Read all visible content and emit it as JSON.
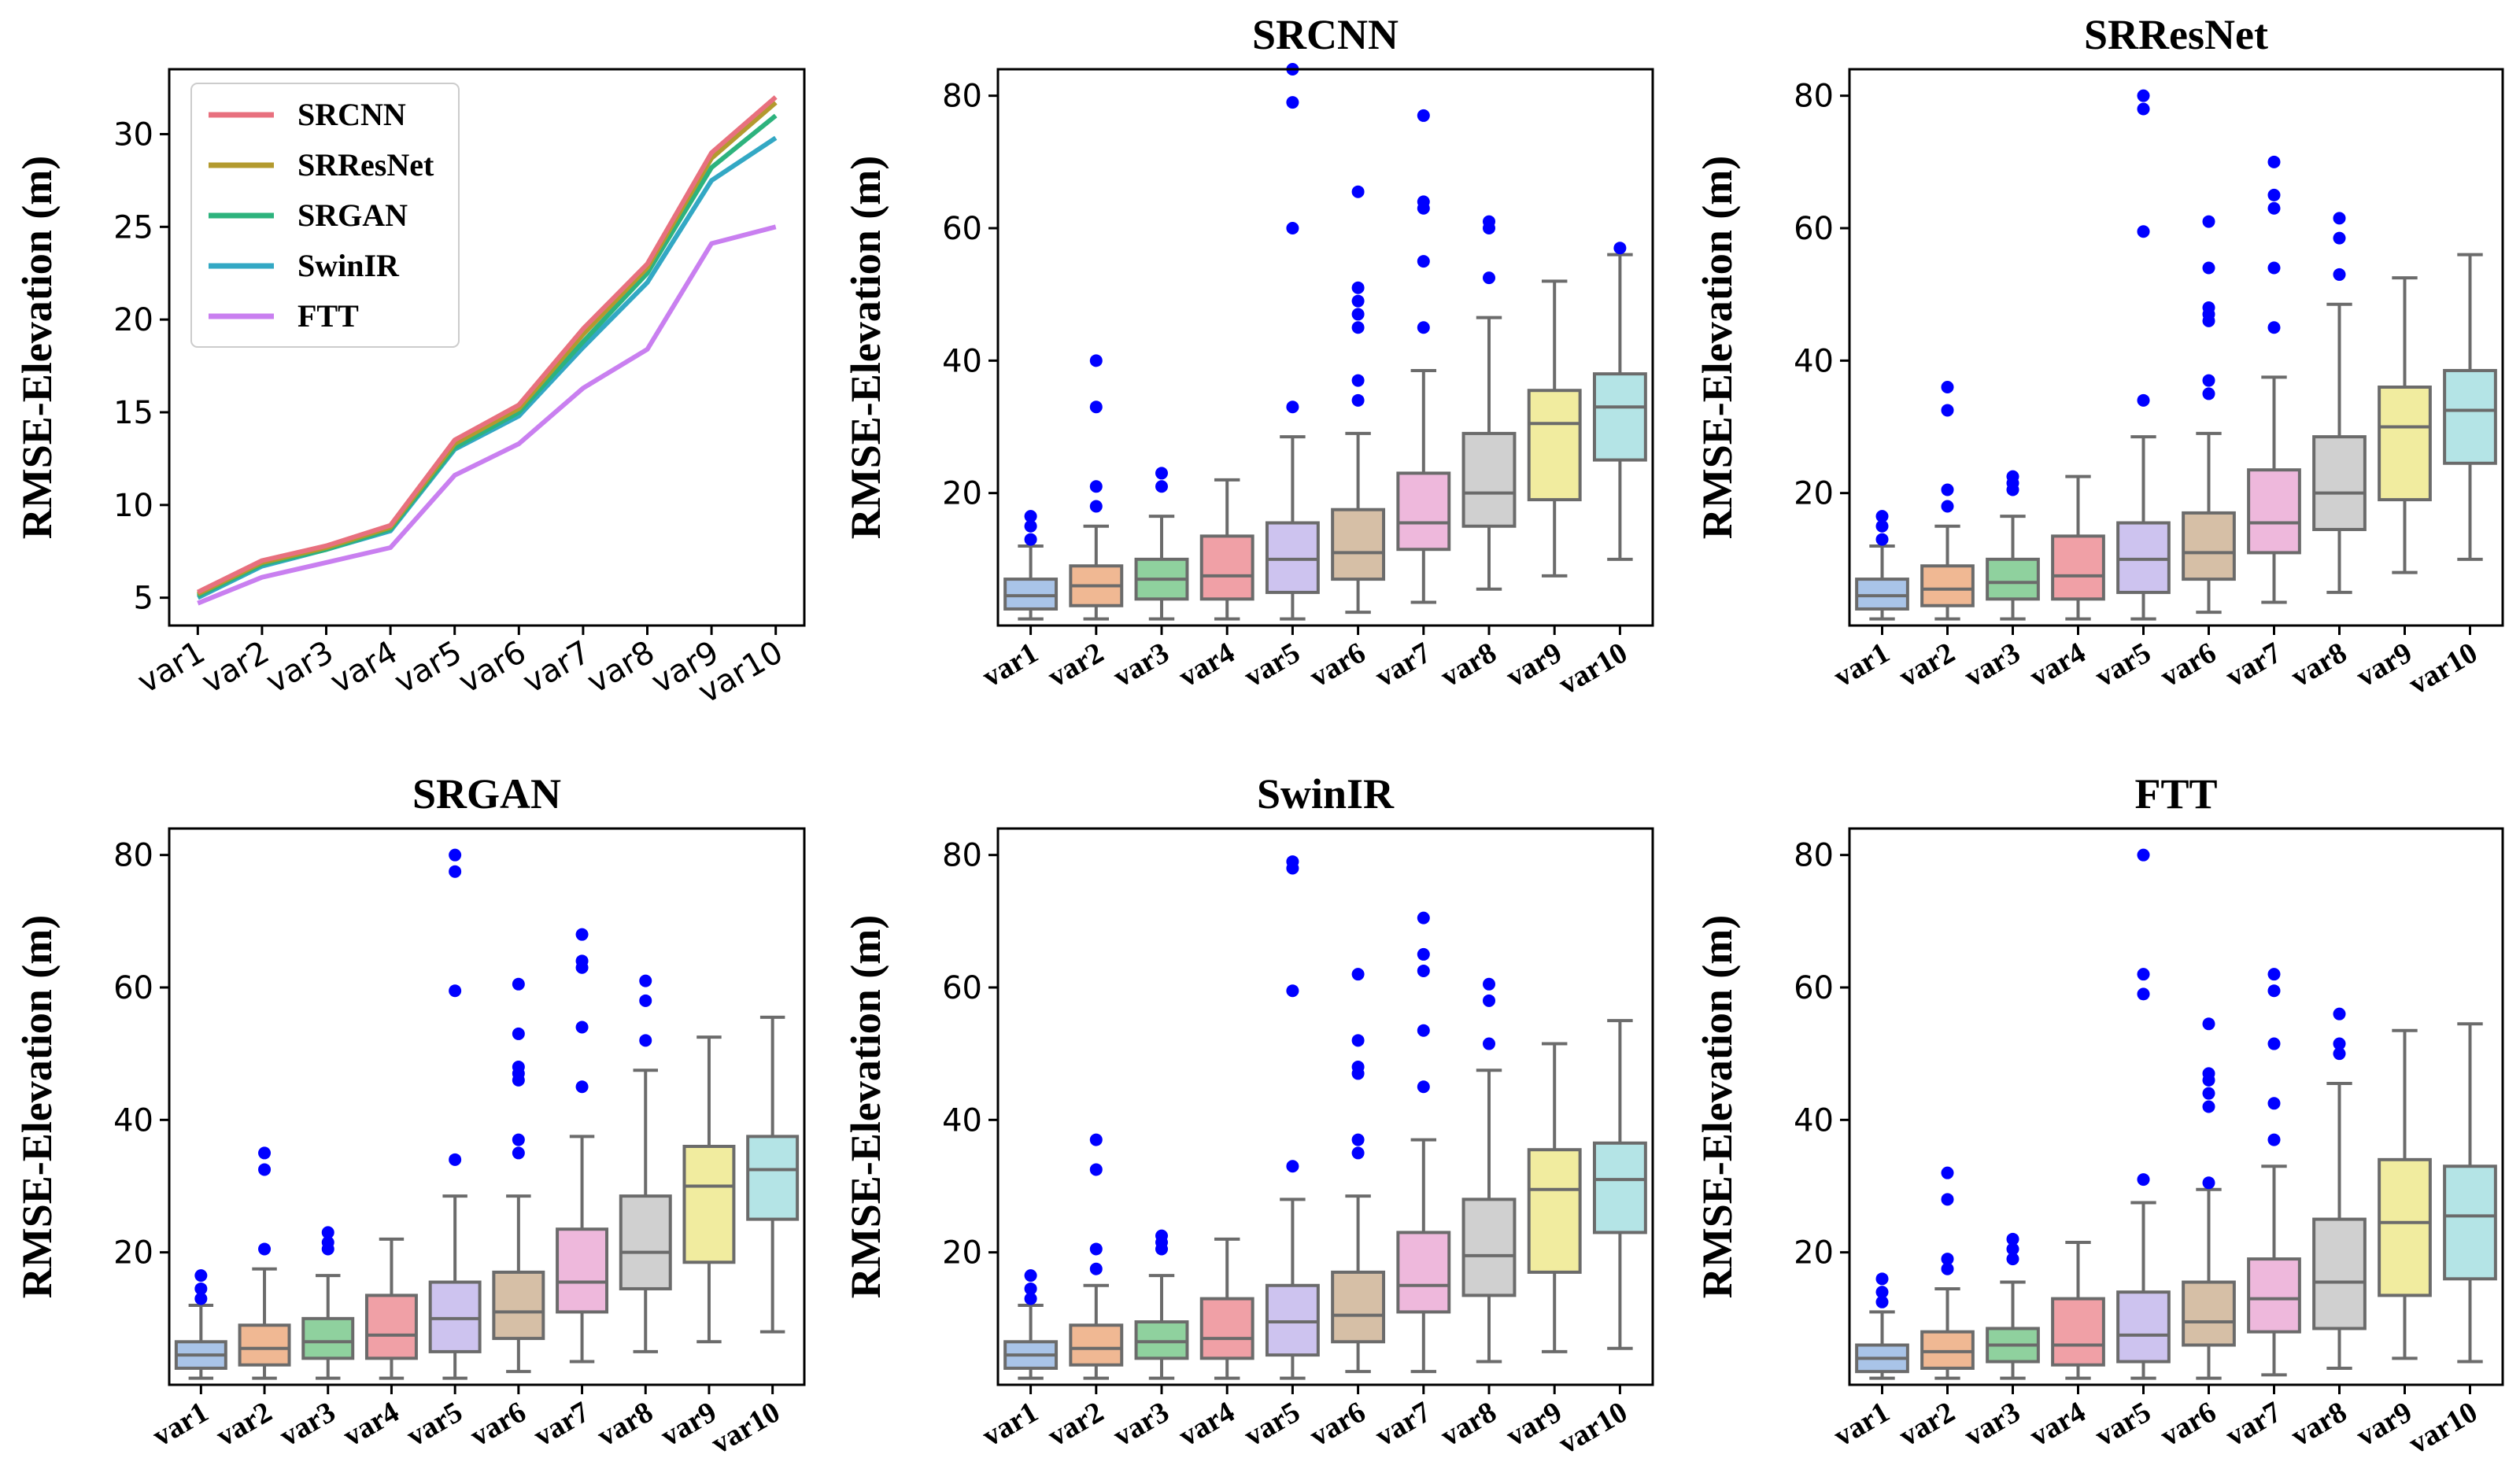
{
  "colors": {
    "axis": "#000000",
    "box_edge": "#6b6b6b",
    "outlier": "#0000ff",
    "series": [
      "#e8707e",
      "#b39a2e",
      "#2db37d",
      "#33a8c4",
      "#c97ff0"
    ],
    "box_fill": [
      "#a9c4e8",
      "#f0b893",
      "#8fd19e",
      "#f0a0a6",
      "#cdc3ef",
      "#d6bfa6",
      "#eeb8dc",
      "#d0d0d0",
      "#f1ec9f",
      "#b4e4e6"
    ]
  },
  "chart_data": [
    {
      "type": "line",
      "title": "",
      "xlabel": "",
      "ylabel": "RMSE-Elevation (m)",
      "ylim": [
        3.5,
        33.5
      ],
      "yticks": [
        5,
        10,
        15,
        20,
        25,
        30
      ],
      "categories": [
        "var1",
        "var2",
        "var3",
        "var4",
        "var5",
        "var6",
        "var7",
        "var8",
        "var9",
        "var10"
      ],
      "legend_position": "top-left",
      "series": [
        {
          "name": "SRCNN",
          "values": [
            5.3,
            7.0,
            7.8,
            8.9,
            13.5,
            15.4,
            19.5,
            23.0,
            29.0,
            32.0
          ]
        },
        {
          "name": "SRResNet",
          "values": [
            5.2,
            6.9,
            7.7,
            8.8,
            13.3,
            15.2,
            19.2,
            22.8,
            28.7,
            31.7
          ]
        },
        {
          "name": "SRGAN",
          "values": [
            5.1,
            6.8,
            7.6,
            8.7,
            13.1,
            15.0,
            18.8,
            22.5,
            28.2,
            31.0
          ]
        },
        {
          "name": "SwinIR",
          "values": [
            5.0,
            6.7,
            7.6,
            8.6,
            13.0,
            14.8,
            18.5,
            22.0,
            27.5,
            29.8
          ]
        },
        {
          "name": "FTT",
          "values": [
            4.7,
            6.1,
            6.9,
            7.7,
            11.6,
            13.3,
            16.3,
            18.4,
            24.1,
            25.0
          ]
        }
      ]
    },
    {
      "type": "box",
      "title": "SRCNN",
      "ylabel": "RMSE-Elevation (m)",
      "ylim": [
        0,
        84
      ],
      "yticks": [
        20,
        40,
        60,
        80
      ],
      "categories": [
        "var1",
        "var2",
        "var3",
        "var4",
        "var5",
        "var6",
        "var7",
        "var8",
        "var9",
        "var10"
      ],
      "boxes": [
        {
          "whislo": 1,
          "q1": 2.5,
          "med": 4.5,
          "q3": 7,
          "whishi": 12,
          "fliers": [
            13,
            15,
            16.5
          ]
        },
        {
          "whislo": 1,
          "q1": 3,
          "med": 6,
          "q3": 9,
          "whishi": 15,
          "fliers": [
            18,
            21,
            33,
            40
          ]
        },
        {
          "whislo": 1,
          "q1": 4,
          "med": 7,
          "q3": 10,
          "whishi": 16.5,
          "fliers": [
            21,
            23
          ]
        },
        {
          "whislo": 1,
          "q1": 4,
          "med": 7.5,
          "q3": 13.5,
          "whishi": 22,
          "fliers": []
        },
        {
          "whislo": 1,
          "q1": 5,
          "med": 10,
          "q3": 15.5,
          "whishi": 28.5,
          "fliers": [
            33,
            60,
            79,
            84
          ]
        },
        {
          "whislo": 2,
          "q1": 7,
          "med": 11,
          "q3": 17.5,
          "whishi": 29,
          "fliers": [
            34,
            37,
            45,
            47,
            49,
            51,
            65.5
          ]
        },
        {
          "whislo": 3.5,
          "q1": 11.5,
          "med": 15.5,
          "q3": 23,
          "whishi": 38.5,
          "fliers": [
            45,
            55,
            63,
            64,
            77
          ]
        },
        {
          "whislo": 5.5,
          "q1": 15,
          "med": 20,
          "q3": 29,
          "whishi": 46.5,
          "fliers": [
            52.5,
            60,
            61
          ]
        },
        {
          "whislo": 7.5,
          "q1": 19,
          "med": 30.5,
          "q3": 35.5,
          "whishi": 52,
          "fliers": []
        },
        {
          "whislo": 10,
          "q1": 25,
          "med": 33,
          "q3": 38,
          "whishi": 56,
          "fliers": [
            57
          ]
        }
      ]
    },
    {
      "type": "box",
      "title": "SRResNet",
      "ylabel": "RMSE-Elevation (m)",
      "ylim": [
        0,
        84
      ],
      "yticks": [
        20,
        40,
        60,
        80
      ],
      "categories": [
        "var1",
        "var2",
        "var3",
        "var4",
        "var5",
        "var6",
        "var7",
        "var8",
        "var9",
        "var10"
      ],
      "boxes": [
        {
          "whislo": 1,
          "q1": 2.5,
          "med": 4.5,
          "q3": 7,
          "whishi": 12,
          "fliers": [
            13,
            15,
            16.5
          ]
        },
        {
          "whislo": 1,
          "q1": 3,
          "med": 5.5,
          "q3": 9,
          "whishi": 15,
          "fliers": [
            18,
            20.5,
            32.5,
            36
          ]
        },
        {
          "whislo": 1,
          "q1": 4,
          "med": 6.5,
          "q3": 10,
          "whishi": 16.5,
          "fliers": [
            20.5,
            21.5,
            22.5
          ]
        },
        {
          "whislo": 1,
          "q1": 4,
          "med": 7.5,
          "q3": 13.5,
          "whishi": 22.5,
          "fliers": []
        },
        {
          "whislo": 1,
          "q1": 5,
          "med": 10,
          "q3": 15.5,
          "whishi": 28.5,
          "fliers": [
            34,
            59.5,
            78,
            80
          ]
        },
        {
          "whislo": 2,
          "q1": 7,
          "med": 11,
          "q3": 17,
          "whishi": 29,
          "fliers": [
            35,
            37,
            46,
            47,
            48,
            54,
            61
          ]
        },
        {
          "whislo": 3.5,
          "q1": 11,
          "med": 15.5,
          "q3": 23.5,
          "whishi": 37.5,
          "fliers": [
            45,
            54,
            63,
            65,
            70
          ]
        },
        {
          "whislo": 5,
          "q1": 14.5,
          "med": 20,
          "q3": 28.5,
          "whishi": 48.5,
          "fliers": [
            53,
            58.5,
            61.5
          ]
        },
        {
          "whislo": 8,
          "q1": 19,
          "med": 30,
          "q3": 36,
          "whishi": 52.5,
          "fliers": []
        },
        {
          "whislo": 10,
          "q1": 24.5,
          "med": 32.5,
          "q3": 38.5,
          "whishi": 56,
          "fliers": []
        }
      ]
    },
    {
      "type": "box",
      "title": "SRGAN",
      "ylabel": "RMSE-Elevation (m)",
      "ylim": [
        0,
        84
      ],
      "yticks": [
        20,
        40,
        60,
        80
      ],
      "categories": [
        "var1",
        "var2",
        "var3",
        "var4",
        "var5",
        "var6",
        "var7",
        "var8",
        "var9",
        "var10"
      ],
      "boxes": [
        {
          "whislo": 1,
          "q1": 2.5,
          "med": 4.5,
          "q3": 6.5,
          "whishi": 12,
          "fliers": [
            13,
            14.5,
            16.5
          ]
        },
        {
          "whislo": 1,
          "q1": 3,
          "med": 5.5,
          "q3": 9,
          "whishi": 17.5,
          "fliers": [
            20.5,
            32.5,
            35
          ]
        },
        {
          "whislo": 1,
          "q1": 4,
          "med": 6.5,
          "q3": 10,
          "whishi": 16.5,
          "fliers": [
            20.5,
            21.5,
            23
          ]
        },
        {
          "whislo": 1,
          "q1": 4,
          "med": 7.5,
          "q3": 13.5,
          "whishi": 22,
          "fliers": []
        },
        {
          "whislo": 1,
          "q1": 5,
          "med": 10,
          "q3": 15.5,
          "whishi": 28.5,
          "fliers": [
            34,
            59.5,
            77.5,
            80
          ]
        },
        {
          "whislo": 2,
          "q1": 7,
          "med": 11,
          "q3": 17,
          "whishi": 28.5,
          "fliers": [
            35,
            37,
            46,
            47,
            48,
            53,
            60.5
          ]
        },
        {
          "whislo": 3.5,
          "q1": 11,
          "med": 15.5,
          "q3": 23.5,
          "whishi": 37.5,
          "fliers": [
            45,
            54,
            63,
            64,
            68
          ]
        },
        {
          "whislo": 5,
          "q1": 14.5,
          "med": 20,
          "q3": 28.5,
          "whishi": 47.5,
          "fliers": [
            52,
            58,
            61
          ]
        },
        {
          "whislo": 6.5,
          "q1": 18.5,
          "med": 30,
          "q3": 36,
          "whishi": 52.5,
          "fliers": []
        },
        {
          "whislo": 8,
          "q1": 25,
          "med": 32.5,
          "q3": 37.5,
          "whishi": 55.5,
          "fliers": []
        }
      ]
    },
    {
      "type": "box",
      "title": "SwinIR",
      "ylabel": "RMSE-Elevation (m)",
      "ylim": [
        0,
        84
      ],
      "yticks": [
        20,
        40,
        60,
        80
      ],
      "categories": [
        "var1",
        "var2",
        "var3",
        "var4",
        "var5",
        "var6",
        "var7",
        "var8",
        "var9",
        "var10"
      ],
      "boxes": [
        {
          "whislo": 1,
          "q1": 2.5,
          "med": 4.5,
          "q3": 6.5,
          "whishi": 12,
          "fliers": [
            13,
            14.5,
            16.5
          ]
        },
        {
          "whislo": 1,
          "q1": 3,
          "med": 5.5,
          "q3": 9,
          "whishi": 15,
          "fliers": [
            17.5,
            20.5,
            32.5,
            37
          ]
        },
        {
          "whislo": 1,
          "q1": 4,
          "med": 6.5,
          "q3": 9.5,
          "whishi": 16.5,
          "fliers": [
            20.5,
            21.5,
            22.5
          ]
        },
        {
          "whislo": 1,
          "q1": 4,
          "med": 7,
          "q3": 13,
          "whishi": 22,
          "fliers": []
        },
        {
          "whislo": 1,
          "q1": 4.5,
          "med": 9.5,
          "q3": 15,
          "whishi": 28,
          "fliers": [
            33,
            59.5,
            78,
            79
          ]
        },
        {
          "whislo": 2,
          "q1": 6.5,
          "med": 10.5,
          "q3": 17,
          "whishi": 28.5,
          "fliers": [
            35,
            37,
            47,
            48,
            52,
            62
          ]
        },
        {
          "whislo": 2,
          "q1": 11,
          "med": 15,
          "q3": 23,
          "whishi": 37,
          "fliers": [
            45,
            53.5,
            62.5,
            65,
            70.5
          ]
        },
        {
          "whislo": 3.5,
          "q1": 13.5,
          "med": 19.5,
          "q3": 28,
          "whishi": 47.5,
          "fliers": [
            51.5,
            58,
            60.5
          ]
        },
        {
          "whislo": 5,
          "q1": 17,
          "med": 29.5,
          "q3": 35.5,
          "whishi": 51.5,
          "fliers": []
        },
        {
          "whislo": 5.5,
          "q1": 23,
          "med": 31,
          "q3": 36.5,
          "whishi": 55,
          "fliers": []
        }
      ]
    },
    {
      "type": "box",
      "title": "FTT",
      "ylabel": "RMSE-Elevation (m)",
      "ylim": [
        0,
        84
      ],
      "yticks": [
        20,
        40,
        60,
        80
      ],
      "categories": [
        "var1",
        "var2",
        "var3",
        "var4",
        "var5",
        "var6",
        "var7",
        "var8",
        "var9",
        "var10"
      ],
      "boxes": [
        {
          "whislo": 1,
          "q1": 2,
          "med": 4,
          "q3": 6,
          "whishi": 11,
          "fliers": [
            12.5,
            14,
            16
          ]
        },
        {
          "whislo": 1,
          "q1": 2.5,
          "med": 5,
          "q3": 8,
          "whishi": 14.5,
          "fliers": [
            17.5,
            19,
            28,
            32
          ]
        },
        {
          "whislo": 1,
          "q1": 3.5,
          "med": 6,
          "q3": 8.5,
          "whishi": 15.5,
          "fliers": [
            19,
            20.5,
            22
          ]
        },
        {
          "whislo": 1,
          "q1": 3,
          "med": 6,
          "q3": 13,
          "whishi": 21.5,
          "fliers": []
        },
        {
          "whislo": 1,
          "q1": 3.5,
          "med": 7.5,
          "q3": 14,
          "whishi": 27.5,
          "fliers": [
            31,
            59,
            62,
            80
          ]
        },
        {
          "whislo": 1,
          "q1": 6,
          "med": 9.5,
          "q3": 15.5,
          "whishi": 29.5,
          "fliers": [
            30.5,
            42,
            44,
            46,
            47,
            54.5
          ]
        },
        {
          "whislo": 1.5,
          "q1": 8,
          "med": 13,
          "q3": 19,
          "whishi": 33,
          "fliers": [
            37,
            42.5,
            51.5,
            59.5,
            62
          ]
        },
        {
          "whislo": 2.5,
          "q1": 8.5,
          "med": 15.5,
          "q3": 25,
          "whishi": 45.5,
          "fliers": [
            50,
            51.5,
            56
          ]
        },
        {
          "whislo": 4,
          "q1": 13.5,
          "med": 24.5,
          "q3": 34,
          "whishi": 53.5,
          "fliers": []
        },
        {
          "whislo": 3.5,
          "q1": 16,
          "med": 25.5,
          "q3": 33,
          "whishi": 54.5,
          "fliers": []
        }
      ]
    }
  ]
}
